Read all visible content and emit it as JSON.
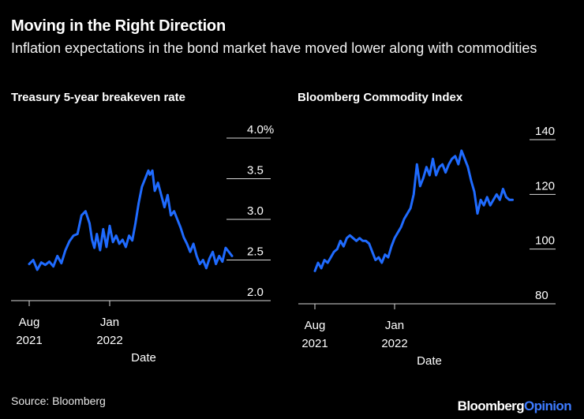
{
  "title": "Moving in the Right Direction",
  "subtitle": "Inflation expectations in the bond market have moved lower along with commodities",
  "source": "Source: Bloomberg",
  "brand": {
    "main": "Bloomberg",
    "accent": "Opinion"
  },
  "colors": {
    "background": "#000000",
    "line": "#1f6bff",
    "text": "#ffffff",
    "grid": "#d9d9d9"
  },
  "chart_data": [
    {
      "type": "line",
      "title": "Treasury 5-year breakeven rate",
      "xlabel": "Date",
      "ylabel": "",
      "ylim": [
        2.0,
        4.0
      ],
      "yticks": [
        2.0,
        2.5,
        3.0,
        3.5,
        4.0
      ],
      "ytick_labels": [
        "2.0",
        "2.5",
        "3.0",
        "3.5",
        "4.0%"
      ],
      "xticks": [
        {
          "month": 0,
          "label1": "Aug",
          "label2": "2021"
        },
        {
          "month": 5,
          "label1": "Jan",
          "label2": "2022"
        }
      ],
      "x_unit": "months since Aug 2021",
      "series": [
        {
          "name": "Treasury 5-year breakeven rate",
          "x": [
            0,
            0.25,
            0.5,
            0.75,
            1,
            1.25,
            1.5,
            1.75,
            2,
            2.25,
            2.5,
            2.75,
            3,
            3.25,
            3.5,
            3.75,
            3.9,
            4.05,
            4.2,
            4.4,
            4.6,
            4.8,
            5,
            5.2,
            5.4,
            5.6,
            5.8,
            6,
            6.2,
            6.4,
            6.6,
            6.8,
            7,
            7.2,
            7.4,
            7.5,
            7.65,
            7.8,
            8,
            8.2,
            8.4,
            8.6,
            8.8,
            9,
            9.2,
            9.4,
            9.6,
            9.8,
            10,
            10.2,
            10.4,
            10.6,
            10.8,
            11,
            11.2,
            11.4,
            11.6,
            11.8,
            12,
            12.2,
            12.4,
            12.6
          ],
          "values": [
            2.45,
            2.5,
            2.38,
            2.47,
            2.44,
            2.48,
            2.42,
            2.55,
            2.46,
            2.62,
            2.73,
            2.8,
            2.82,
            3.05,
            3.1,
            2.95,
            2.75,
            2.65,
            2.82,
            2.62,
            2.88,
            2.66,
            2.92,
            2.72,
            2.8,
            2.7,
            2.75,
            2.66,
            2.8,
            2.74,
            2.95,
            3.2,
            3.4,
            3.5,
            3.6,
            3.55,
            3.6,
            3.35,
            3.45,
            3.3,
            3.15,
            3.3,
            3.05,
            3.1,
            3.0,
            2.9,
            2.78,
            2.7,
            2.6,
            2.7,
            2.55,
            2.45,
            2.5,
            2.4,
            2.52,
            2.6,
            2.45,
            2.55,
            2.48,
            2.65,
            2.6,
            2.55
          ]
        }
      ]
    },
    {
      "type": "line",
      "title": "Bloomberg Commodity Index",
      "xlabel": "Date",
      "ylabel": "",
      "ylim": [
        80,
        140
      ],
      "yticks": [
        80,
        100,
        120,
        140
      ],
      "ytick_labels": [
        "80",
        "100",
        "120",
        "140"
      ],
      "xticks": [
        {
          "month": 0,
          "label1": "Aug",
          "label2": "2021"
        },
        {
          "month": 5,
          "label1": "Jan",
          "label2": "2022"
        }
      ],
      "x_unit": "months since Aug 2021",
      "series": [
        {
          "name": "Bloomberg Commodity Index",
          "x": [
            0,
            0.2,
            0.4,
            0.6,
            0.8,
            1,
            1.2,
            1.4,
            1.6,
            1.8,
            2,
            2.2,
            2.4,
            2.6,
            2.8,
            3,
            3.2,
            3.4,
            3.6,
            3.8,
            4,
            4.2,
            4.4,
            4.6,
            4.8,
            5,
            5.2,
            5.4,
            5.6,
            5.8,
            6,
            6.2,
            6.4,
            6.6,
            6.8,
            7,
            7.2,
            7.4,
            7.6,
            7.8,
            8,
            8.2,
            8.4,
            8.6,
            8.8,
            9,
            9.2,
            9.4,
            9.6,
            9.8,
            10,
            10.2,
            10.4,
            10.6,
            10.8,
            11,
            11.2,
            11.4,
            11.6,
            11.8,
            12,
            12.2,
            12.4
          ],
          "values": [
            92,
            95,
            93,
            96,
            95,
            97,
            99,
            100,
            103,
            101,
            104,
            105,
            104,
            103,
            104,
            103,
            103,
            102,
            99,
            96,
            97,
            95,
            98,
            97,
            101,
            104,
            106,
            108,
            111,
            113,
            115,
            120,
            131,
            123,
            126,
            130,
            127,
            133,
            127,
            130,
            131,
            128,
            131,
            133,
            134,
            131,
            136,
            133,
            130,
            125,
            121,
            113,
            118,
            116,
            119,
            116,
            118,
            120,
            118,
            122,
            119,
            118,
            118
          ]
        }
      ]
    }
  ]
}
